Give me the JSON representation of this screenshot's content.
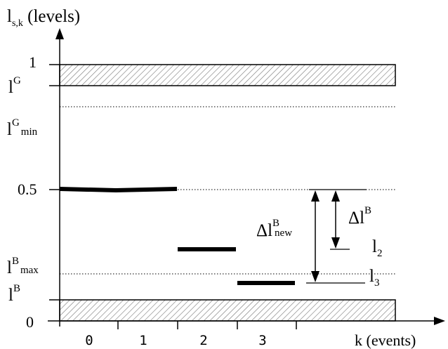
{
  "diagram": {
    "y_axis_label": {
      "main": "l",
      "sub": "s,k",
      "rest": " (levels)"
    },
    "x_axis_label": "k (events)",
    "x_ticks": [
      "0",
      "1",
      "2",
      "3"
    ],
    "y_labels": {
      "one": "1",
      "lG": {
        "main": "l",
        "sup": "G"
      },
      "lG_min": {
        "main": "l",
        "sup": "G",
        "sub": "min"
      },
      "half": "0.5",
      "lB_max": {
        "main": "l",
        "sup": "B",
        "sub": "max"
      },
      "lB": {
        "main": "l",
        "sup": "B"
      },
      "zero": "0"
    },
    "annotations": {
      "delta_lB_new": {
        "main": "Δl",
        "sup": "B",
        "sub": "new"
      },
      "delta_lB": {
        "main": "Δl",
        "sup": "B"
      },
      "l2": {
        "main": "l",
        "sub": "2"
      },
      "l3": {
        "main": "l",
        "sub": "3"
      }
    },
    "colors": {
      "line": "#000000",
      "hatch": "#666666",
      "background": "#ffffff"
    }
  }
}
